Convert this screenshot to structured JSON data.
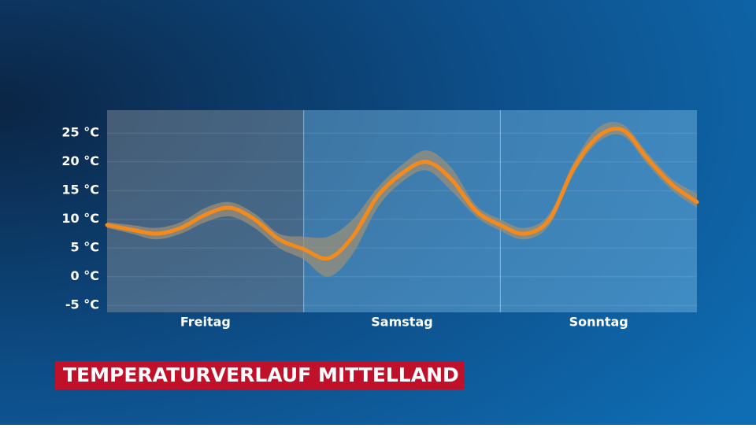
{
  "chart_data": {
    "type": "line",
    "title": "TEMPERATURVERLAUF MITTELLAND",
    "categories": [
      "Freitag",
      "Samstag",
      "Sonntag"
    ],
    "x": [
      0,
      3,
      6,
      9,
      12,
      15,
      18,
      21,
      24,
      27,
      30,
      33,
      36,
      39,
      42,
      45,
      48,
      51,
      54,
      57,
      60,
      63,
      66,
      69,
      72
    ],
    "xlim": [
      0,
      72
    ],
    "series": [
      {
        "color": "#f28a1e",
        "values": [
          9,
          8.2,
          7.5,
          8.5,
          10.8,
          12,
          10,
          6.5,
          4.8,
          3.2,
          7,
          14,
          18,
          20,
          17,
          11.5,
          9,
          7.5,
          10,
          19,
          24.5,
          25.5,
          20.5,
          16,
          13
        ]
      }
    ],
    "band": {
      "color": "#9a8f7a",
      "lower": [
        8.5,
        7.5,
        6.5,
        7.5,
        9.5,
        10.5,
        8.5,
        5,
        3,
        0,
        4,
        12,
        16.5,
        18.5,
        15,
        10.5,
        8,
        6.5,
        9,
        18,
        23.5,
        24.5,
        19.5,
        15,
        12
      ],
      "upper": [
        9.5,
        9,
        8.5,
        9.5,
        12,
        13,
        11,
        7.5,
        7,
        7,
        10,
        15.5,
        19.5,
        22,
        19,
        12.5,
        10,
        8.5,
        11,
        20,
        26,
        26.5,
        21.5,
        17,
        14.5
      ]
    },
    "ylim": [
      -6.2,
      29
    ],
    "yticks": [
      {
        "value": -5,
        "label": "-5 °C"
      },
      {
        "value": 0,
        "label": "0 °C"
      },
      {
        "value": 5,
        "label": "5 °C"
      },
      {
        "value": 10,
        "label": "10 °C"
      },
      {
        "value": 15,
        "label": "15 °C"
      },
      {
        "value": 20,
        "label": "20 °C"
      },
      {
        "value": 25,
        "label": "25 °C"
      }
    ],
    "grid": true
  }
}
